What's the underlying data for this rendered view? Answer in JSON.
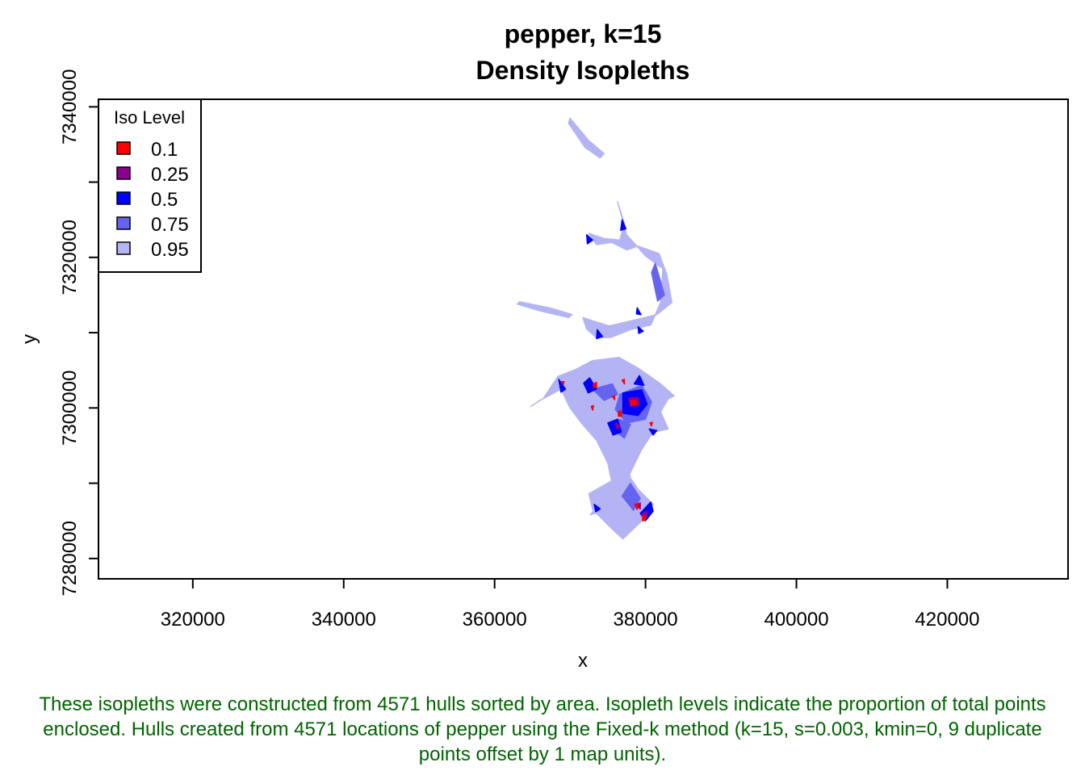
{
  "chart_data": {
    "type": "area",
    "title": "pepper, k=15",
    "subtitle": "Density Isopleths",
    "xlabel": "x",
    "ylabel": "y",
    "xlim": [
      307500,
      436000
    ],
    "ylim": [
      7277300,
      7341000
    ],
    "x_ticks": [
      320000,
      340000,
      360000,
      380000,
      400000,
      420000
    ],
    "x_tick_labels": [
      "320000",
      "340000",
      "360000",
      "380000",
      "400000",
      "420000"
    ],
    "y_ticks": [
      7280000,
      7290000,
      7300000,
      7310000,
      7320000,
      7330000,
      7340000
    ],
    "y_tick_labels": [
      "7280000",
      "",
      "7300000",
      "",
      "7320000",
      "",
      "7340000"
    ],
    "grid": false,
    "legend": {
      "title": "Iso Level",
      "position": "top-left",
      "entries": [
        {
          "label": "0.1",
          "color": "#ff0000"
        },
        {
          "label": "0.25",
          "color": "#8b008b"
        },
        {
          "label": "0.5",
          "color": "#0000ff"
        },
        {
          "label": "0.75",
          "color": "#6464f0"
        },
        {
          "label": "0.95",
          "color": "#b4b4f5"
        }
      ]
    },
    "isopleths": [
      {
        "level": "0.95",
        "color": "#b4b4f5",
        "polygons": [
          [
            [
              370000,
              7338500
            ],
            [
              372500,
              7335500
            ],
            [
              374500,
              7333800
            ],
            [
              374000,
              7333200
            ],
            [
              372000,
              7334600
            ],
            [
              369800,
              7337800
            ]
          ],
          [
            [
              376300,
              7327400
            ],
            [
              377500,
              7323000
            ],
            [
              380000,
              7320200
            ],
            [
              382300,
              7318500
            ],
            [
              382000,
              7314000
            ],
            [
              380700,
              7311000
            ],
            [
              378000,
              7310400
            ],
            [
              375500,
              7309400
            ],
            [
              373500,
              7309300
            ],
            [
              372200,
              7310500
            ],
            [
              371700,
              7312000
            ],
            [
              373200,
              7311500
            ],
            [
              375200,
              7310900
            ],
            [
              378200,
              7311600
            ],
            [
              381500,
              7312400
            ],
            [
              383500,
              7314000
            ],
            [
              382800,
              7317800
            ],
            [
              381800,
              7320500
            ],
            [
              379000,
              7321500
            ],
            [
              377500,
              7321000
            ],
            [
              375500,
              7322000
            ],
            [
              373500,
              7321700
            ],
            [
              372500,
              7323200
            ],
            [
              374500,
              7322500
            ],
            [
              376600,
              7322300
            ],
            [
              377200,
              7324500
            ]
          ],
          [
            [
              363300,
              7314100
            ],
            [
              367300,
              7313300
            ],
            [
              370300,
              7312400
            ],
            [
              369800,
              7312000
            ],
            [
              366000,
              7312900
            ],
            [
              363000,
              7313800
            ]
          ],
          [
            [
              373000,
              7306300
            ],
            [
              376500,
              7306700
            ],
            [
              379000,
              7305300
            ],
            [
              382000,
              7303200
            ],
            [
              383800,
              7301600
            ],
            [
              383000,
              7301200
            ],
            [
              382000,
              7299500
            ],
            [
              383000,
              7297200
            ],
            [
              381000,
              7296800
            ],
            [
              379500,
              7294500
            ],
            [
              377800,
              7291000
            ],
            [
              379000,
              7289200
            ],
            [
              381000,
              7287200
            ],
            [
              379500,
              7285000
            ],
            [
              377000,
              7282600
            ],
            [
              375500,
              7284000
            ],
            [
              373000,
              7286500
            ],
            [
              372500,
              7288600
            ],
            [
              375500,
              7290300
            ],
            [
              375000,
              7292700
            ],
            [
              373500,
              7295700
            ],
            [
              371500,
              7298000
            ],
            [
              370000,
              7300000
            ],
            [
              368800,
              7302500
            ],
            [
              366000,
              7301000
            ],
            [
              364800,
              7300200
            ],
            [
              366500,
              7301300
            ],
            [
              368400,
              7304200
            ],
            [
              370700,
              7305100
            ]
          ],
          [
            [
              372700,
              7285800
            ],
            [
              377000,
              7291500
            ],
            [
              378000,
              7291000
            ],
            [
              375000,
              7286500
            ]
          ]
        ]
      },
      {
        "level": "0.75",
        "color": "#6464f0",
        "polygons": [
          [
            [
              381300,
              7319200
            ],
            [
              382500,
              7315000
            ],
            [
              381600,
              7314200
            ],
            [
              380800,
              7318000
            ]
          ],
          [
            [
              376600,
              7301800
            ],
            [
              379500,
              7303000
            ],
            [
              380800,
              7300800
            ],
            [
              380000,
              7298500
            ],
            [
              377500,
              7298000
            ],
            [
              376000,
              7299800
            ]
          ],
          [
            [
              373000,
              7302500
            ],
            [
              375600,
              7303200
            ],
            [
              376300,
              7301800
            ],
            [
              374500,
              7301000
            ]
          ],
          [
            [
              376500,
              7298500
            ],
            [
              378000,
              7297800
            ],
            [
              377200,
              7296000
            ],
            [
              376000,
              7296900
            ]
          ],
          [
            [
              376900,
              7288300
            ],
            [
              378000,
              7290000
            ],
            [
              379300,
              7288000
            ],
            [
              378400,
              7286400
            ]
          ]
        ]
      },
      {
        "level": "0.5",
        "color": "#0000ff",
        "polygons": [
          [
            [
              377000,
              7302000
            ],
            [
              379500,
              7302400
            ],
            [
              380200,
              7300500
            ],
            [
              379000,
              7299000
            ],
            [
              377000,
              7299300
            ]
          ],
          [
            [
              372600,
              7304000
            ],
            [
              373500,
              7302500
            ],
            [
              372400,
              7302000
            ],
            [
              371800,
              7303300
            ]
          ],
          [
            [
              375000,
              7298000
            ],
            [
              376300,
              7298500
            ],
            [
              376800,
              7296800
            ],
            [
              375700,
              7296400
            ]
          ],
          [
            [
              379300,
              7286000
            ],
            [
              380700,
              7287500
            ],
            [
              381000,
              7286300
            ],
            [
              380000,
              7285000
            ]
          ],
          [
            [
              368500,
              7303800
            ],
            [
              369400,
              7302500
            ],
            [
              368800,
              7302100
            ]
          ],
          [
            [
              378500,
              7303200
            ],
            [
              379200,
              7304300
            ],
            [
              379800,
              7303000
            ]
          ],
          [
            [
              380500,
              7297200
            ],
            [
              381500,
              7297000
            ],
            [
              381000,
              7296400
            ]
          ],
          [
            [
              372200,
              7323000
            ],
            [
              373000,
              7322300
            ],
            [
              372300,
              7321800
            ]
          ],
          [
            [
              376900,
              7325000
            ],
            [
              377400,
              7323800
            ],
            [
              376700,
              7323600
            ]
          ],
          [
            [
              373600,
              7310400
            ],
            [
              374300,
              7309500
            ],
            [
              373500,
              7309200
            ]
          ],
          [
            [
              379000,
              7310800
            ],
            [
              379700,
              7310200
            ],
            [
              379100,
              7309900
            ]
          ],
          [
            [
              378900,
              7313300
            ],
            [
              379400,
              7312400
            ],
            [
              378800,
              7312500
            ]
          ],
          [
            [
              373200,
              7287200
            ],
            [
              374000,
              7286600
            ],
            [
              373400,
              7286200
            ]
          ]
        ]
      },
      {
        "level": "0.25",
        "color": "#8b008b",
        "polygons": [
          [
            [
              377800,
              7301300
            ],
            [
              379000,
              7301400
            ],
            [
              379200,
              7300400
            ],
            [
              378000,
              7300200
            ]
          ],
          [
            [
              376000,
              7298000
            ],
            [
              376600,
              7297600
            ],
            [
              376200,
              7297200
            ]
          ],
          [
            [
              379400,
              7285800
            ],
            [
              380100,
              7286300
            ],
            [
              380200,
              7285500
            ]
          ],
          [
            [
              378800,
              7287000
            ],
            [
              379300,
              7287400
            ],
            [
              379300,
              7286600
            ]
          ]
        ]
      },
      {
        "level": "0.1",
        "color": "#ff0000",
        "polygons": [
          [
            [
              378000,
              7301000
            ],
            [
              378700,
              7301000
            ],
            [
              378800,
              7300500
            ],
            [
              378100,
              7300400
            ]
          ],
          [
            [
              373100,
              7303200
            ],
            [
              373500,
              7303400
            ],
            [
              373500,
              7302800
            ],
            [
              373100,
              7302700
            ]
          ],
          [
            [
              376400,
              7299500
            ],
            [
              376800,
              7299600
            ],
            [
              376800,
              7298900
            ],
            [
              376400,
              7298900
            ]
          ],
          [
            [
              379600,
              7285600
            ],
            [
              380000,
              7285700
            ],
            [
              380000,
              7285100
            ],
            [
              379600,
              7285000
            ]
          ],
          [
            [
              378600,
              7287200
            ],
            [
              379000,
              7287300
            ],
            [
              378900,
              7286500
            ]
          ],
          [
            [
              368900,
              7303500
            ],
            [
              369200,
              7303500
            ],
            [
              369100,
              7303100
            ]
          ],
          [
            [
              375600,
              7301500
            ],
            [
              375900,
              7301600
            ],
            [
              375900,
              7301100
            ]
          ],
          [
            [
              376900,
              7303700
            ],
            [
              377200,
              7303800
            ],
            [
              377200,
              7303200
            ]
          ],
          [
            [
              372800,
              7300200
            ],
            [
              373100,
              7300300
            ],
            [
              373000,
              7299700
            ]
          ],
          [
            [
              380600,
              7298000
            ],
            [
              380900,
              7298100
            ],
            [
              380800,
              7297600
            ]
          ]
        ]
      }
    ]
  },
  "caption": "These isopleths were constructed from 4571 hulls sorted by area. Isopleth levels indicate the proportion of total points enclosed. Hulls created from 4571 locations of pepper using the Fixed-k method (k=15, s=0.003, kmin=0, 9 duplicate points offset by 1 map units)."
}
